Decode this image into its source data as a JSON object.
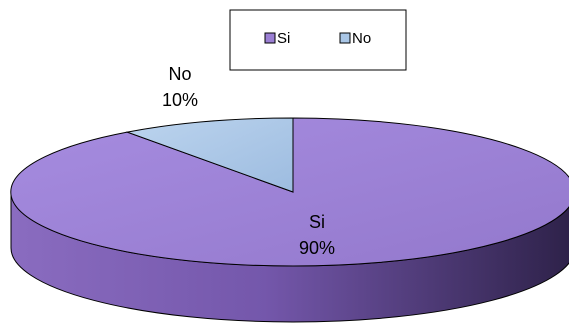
{
  "chart_data": {
    "type": "pie",
    "style": "3d",
    "legend": "top",
    "slices": [
      {
        "label": "Si",
        "value": 90,
        "percent_label": "90%",
        "color": "#9b7fd4",
        "side_color": "#6f54a5"
      },
      {
        "label": "No",
        "value": 10,
        "percent_label": "10%",
        "color": "#a9c6e6",
        "side_color": "#7e9cc0"
      }
    ]
  }
}
